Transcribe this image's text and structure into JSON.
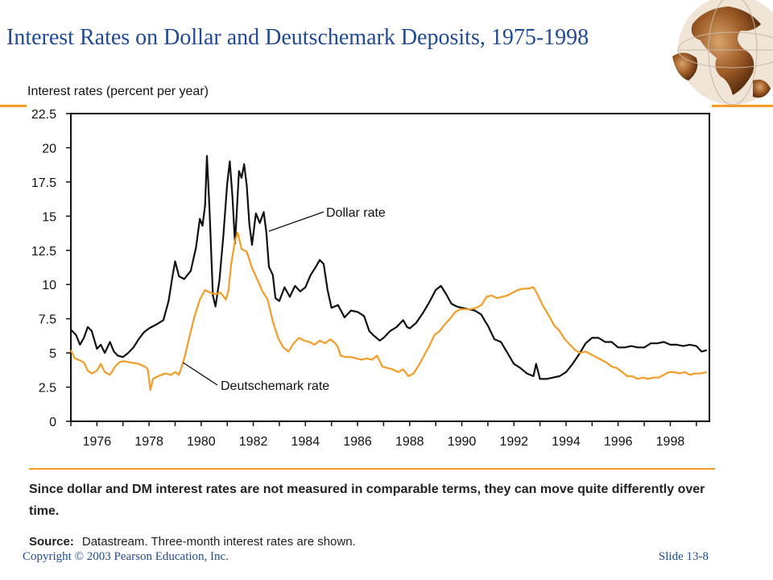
{
  "slide": {
    "title": "Interest Rates on Dollar and Deutschemark Deposits, 1975-1998",
    "caption": "Since dollar and DM interest rates are not measured in comparable terms, they can move quite differently over time.",
    "source_label": "Source:",
    "source_text": "Datastream. Three-month interest rates are shown.",
    "copyright": "Copyright © 2003 Pearson Education, Inc.",
    "slide_number": "Slide 13-8",
    "accent_color": "#f39c26",
    "title_color": "#1f4a96",
    "globe_icon": "globe-icon"
  },
  "chart_data": {
    "type": "line",
    "title": "",
    "xlabel": "",
    "ylabel": "Interest rates (percent per year)",
    "xlim": [
      1975.0,
      1999.5
    ],
    "ylim": [
      0,
      22.5
    ],
    "x_ticks": [
      1976,
      1978,
      1980,
      1982,
      1984,
      1986,
      1988,
      1990,
      1992,
      1994,
      1996,
      1998
    ],
    "y_ticks": [
      0,
      2.5,
      5,
      7.5,
      10,
      12.5,
      15,
      17.5,
      20,
      22.5
    ],
    "y_tick_labels": [
      "0",
      "2.5",
      "5",
      "7.5",
      "10",
      "12.5",
      "15",
      "17.5",
      "20",
      "22.5"
    ],
    "grid": false,
    "series": [
      {
        "name": "Dollar rate",
        "color": "#111111",
        "points": [
          [
            1975.0,
            6.7
          ],
          [
            1975.2,
            6.3
          ],
          [
            1975.35,
            5.6
          ],
          [
            1975.5,
            6.1
          ],
          [
            1975.65,
            6.9
          ],
          [
            1975.8,
            6.6
          ],
          [
            1976.0,
            5.3
          ],
          [
            1976.15,
            5.6
          ],
          [
            1976.3,
            5.0
          ],
          [
            1976.5,
            5.8
          ],
          [
            1976.65,
            5.1
          ],
          [
            1976.8,
            4.8
          ],
          [
            1977.0,
            4.7
          ],
          [
            1977.2,
            5.0
          ],
          [
            1977.4,
            5.4
          ],
          [
            1977.6,
            6.0
          ],
          [
            1977.8,
            6.5
          ],
          [
            1978.0,
            6.8
          ],
          [
            1978.3,
            7.1
          ],
          [
            1978.55,
            7.4
          ],
          [
            1978.75,
            8.8
          ],
          [
            1978.9,
            10.6
          ],
          [
            1979.0,
            11.7
          ],
          [
            1979.15,
            10.6
          ],
          [
            1979.35,
            10.4
          ],
          [
            1979.6,
            11.0
          ],
          [
            1979.8,
            12.7
          ],
          [
            1979.95,
            14.8
          ],
          [
            1980.05,
            14.3
          ],
          [
            1980.15,
            15.8
          ],
          [
            1980.22,
            19.4
          ],
          [
            1980.32,
            15.5
          ],
          [
            1980.45,
            9.2
          ],
          [
            1980.55,
            8.4
          ],
          [
            1980.7,
            10.3
          ],
          [
            1980.85,
            13.5
          ],
          [
            1981.0,
            17.4
          ],
          [
            1981.1,
            19.0
          ],
          [
            1981.2,
            16.4
          ],
          [
            1981.3,
            13.0
          ],
          [
            1981.45,
            18.3
          ],
          [
            1981.55,
            17.8
          ],
          [
            1981.65,
            18.8
          ],
          [
            1981.75,
            17.2
          ],
          [
            1981.85,
            14.4
          ],
          [
            1981.95,
            12.9
          ],
          [
            1982.1,
            15.2
          ],
          [
            1982.25,
            14.5
          ],
          [
            1982.4,
            15.3
          ],
          [
            1982.5,
            13.8
          ],
          [
            1982.6,
            11.3
          ],
          [
            1982.75,
            10.7
          ],
          [
            1982.85,
            9.0
          ],
          [
            1983.0,
            8.8
          ],
          [
            1983.2,
            9.8
          ],
          [
            1983.4,
            9.1
          ],
          [
            1983.6,
            9.9
          ],
          [
            1983.8,
            9.5
          ],
          [
            1984.0,
            9.8
          ],
          [
            1984.2,
            10.7
          ],
          [
            1984.4,
            11.3
          ],
          [
            1984.55,
            11.8
          ],
          [
            1984.7,
            11.5
          ],
          [
            1984.85,
            9.6
          ],
          [
            1985.0,
            8.3
          ],
          [
            1985.25,
            8.5
          ],
          [
            1985.5,
            7.6
          ],
          [
            1985.75,
            8.1
          ],
          [
            1986.0,
            8.0
          ],
          [
            1986.25,
            7.7
          ],
          [
            1986.45,
            6.6
          ],
          [
            1986.6,
            6.3
          ],
          [
            1986.85,
            5.9
          ],
          [
            1987.0,
            6.1
          ],
          [
            1987.25,
            6.6
          ],
          [
            1987.5,
            6.9
          ],
          [
            1987.75,
            7.4
          ],
          [
            1987.9,
            6.9
          ],
          [
            1988.0,
            6.8
          ],
          [
            1988.25,
            7.2
          ],
          [
            1988.5,
            7.9
          ],
          [
            1988.75,
            8.7
          ],
          [
            1989.0,
            9.6
          ],
          [
            1989.2,
            9.9
          ],
          [
            1989.4,
            9.3
          ],
          [
            1989.6,
            8.6
          ],
          [
            1989.8,
            8.4
          ],
          [
            1990.0,
            8.3
          ],
          [
            1990.25,
            8.2
          ],
          [
            1990.5,
            8.1
          ],
          [
            1990.75,
            7.8
          ],
          [
            1990.9,
            7.3
          ],
          [
            1991.0,
            7.0
          ],
          [
            1991.25,
            6.0
          ],
          [
            1991.5,
            5.8
          ],
          [
            1991.75,
            5.0
          ],
          [
            1992.0,
            4.2
          ],
          [
            1992.25,
            3.9
          ],
          [
            1992.5,
            3.5
          ],
          [
            1992.75,
            3.3
          ],
          [
            1992.85,
            4.2
          ],
          [
            1993.0,
            3.1
          ],
          [
            1993.25,
            3.1
          ],
          [
            1993.5,
            3.2
          ],
          [
            1993.75,
            3.3
          ],
          [
            1994.0,
            3.6
          ],
          [
            1994.25,
            4.2
          ],
          [
            1994.5,
            4.9
          ],
          [
            1994.75,
            5.7
          ],
          [
            1995.0,
            6.1
          ],
          [
            1995.25,
            6.1
          ],
          [
            1995.5,
            5.8
          ],
          [
            1995.75,
            5.8
          ],
          [
            1996.0,
            5.4
          ],
          [
            1996.25,
            5.4
          ],
          [
            1996.5,
            5.5
          ],
          [
            1996.75,
            5.4
          ],
          [
            1997.0,
            5.4
          ],
          [
            1997.25,
            5.7
          ],
          [
            1997.5,
            5.7
          ],
          [
            1997.75,
            5.8
          ],
          [
            1998.0,
            5.6
          ],
          [
            1998.25,
            5.6
          ],
          [
            1998.5,
            5.5
          ],
          [
            1998.75,
            5.6
          ],
          [
            1999.0,
            5.5
          ],
          [
            1999.2,
            5.1
          ],
          [
            1999.4,
            5.2
          ]
        ]
      },
      {
        "name": "Deutschemark rate",
        "color": "#f39c26",
        "points": [
          [
            1975.0,
            5.2
          ],
          [
            1975.15,
            4.6
          ],
          [
            1975.3,
            4.5
          ],
          [
            1975.5,
            4.3
          ],
          [
            1975.65,
            3.7
          ],
          [
            1975.8,
            3.5
          ],
          [
            1976.0,
            3.7
          ],
          [
            1976.15,
            4.2
          ],
          [
            1976.3,
            3.6
          ],
          [
            1976.5,
            3.4
          ],
          [
            1976.7,
            4.0
          ],
          [
            1976.85,
            4.3
          ],
          [
            1977.0,
            4.4
          ],
          [
            1977.3,
            4.3
          ],
          [
            1977.6,
            4.2
          ],
          [
            1977.85,
            4.0
          ],
          [
            1977.95,
            3.8
          ],
          [
            1978.05,
            2.3
          ],
          [
            1978.15,
            3.1
          ],
          [
            1978.35,
            3.3
          ],
          [
            1978.6,
            3.5
          ],
          [
            1978.85,
            3.4
          ],
          [
            1979.0,
            3.6
          ],
          [
            1979.15,
            3.4
          ],
          [
            1979.35,
            4.6
          ],
          [
            1979.55,
            6.2
          ],
          [
            1979.75,
            7.7
          ],
          [
            1979.95,
            8.9
          ],
          [
            1980.15,
            9.6
          ],
          [
            1980.35,
            9.4
          ],
          [
            1980.55,
            9.3
          ],
          [
            1980.75,
            9.4
          ],
          [
            1980.95,
            8.9
          ],
          [
            1981.05,
            9.6
          ],
          [
            1981.15,
            11.5
          ],
          [
            1981.3,
            13.2
          ],
          [
            1981.4,
            13.8
          ],
          [
            1981.55,
            12.6
          ],
          [
            1981.75,
            12.4
          ],
          [
            1981.95,
            11.2
          ],
          [
            1982.15,
            10.4
          ],
          [
            1982.35,
            9.5
          ],
          [
            1982.55,
            8.9
          ],
          [
            1982.75,
            7.3
          ],
          [
            1982.95,
            6.1
          ],
          [
            1983.15,
            5.4
          ],
          [
            1983.35,
            5.1
          ],
          [
            1983.55,
            5.7
          ],
          [
            1983.75,
            6.1
          ],
          [
            1983.95,
            5.9
          ],
          [
            1984.15,
            5.8
          ],
          [
            1984.35,
            5.6
          ],
          [
            1984.55,
            5.9
          ],
          [
            1984.75,
            5.7
          ],
          [
            1984.95,
            6.0
          ],
          [
            1985.15,
            5.7
          ],
          [
            1985.25,
            5.4
          ],
          [
            1985.35,
            4.8
          ],
          [
            1985.55,
            4.7
          ],
          [
            1985.75,
            4.7
          ],
          [
            1985.95,
            4.6
          ],
          [
            1986.15,
            4.5
          ],
          [
            1986.35,
            4.6
          ],
          [
            1986.55,
            4.5
          ],
          [
            1986.75,
            4.8
          ],
          [
            1986.95,
            4.0
          ],
          [
            1987.15,
            3.9
          ],
          [
            1987.35,
            3.8
          ],
          [
            1987.55,
            3.6
          ],
          [
            1987.75,
            3.8
          ],
          [
            1987.95,
            3.3
          ],
          [
            1988.15,
            3.5
          ],
          [
            1988.35,
            4.1
          ],
          [
            1988.55,
            4.8
          ],
          [
            1988.75,
            5.5
          ],
          [
            1988.95,
            6.3
          ],
          [
            1989.15,
            6.6
          ],
          [
            1989.35,
            7.1
          ],
          [
            1989.55,
            7.5
          ],
          [
            1989.75,
            8.0
          ],
          [
            1989.95,
            8.2
          ],
          [
            1990.15,
            8.2
          ],
          [
            1990.35,
            8.2
          ],
          [
            1990.55,
            8.3
          ],
          [
            1990.75,
            8.5
          ],
          [
            1990.95,
            9.1
          ],
          [
            1991.15,
            9.2
          ],
          [
            1991.35,
            9.0
          ],
          [
            1991.55,
            9.1
          ],
          [
            1991.75,
            9.2
          ],
          [
            1991.95,
            9.4
          ],
          [
            1992.15,
            9.6
          ],
          [
            1992.35,
            9.7
          ],
          [
            1992.55,
            9.7
          ],
          [
            1992.75,
            9.8
          ],
          [
            1992.9,
            9.3
          ],
          [
            1993.1,
            8.5
          ],
          [
            1993.35,
            7.7
          ],
          [
            1993.55,
            7.0
          ],
          [
            1993.75,
            6.6
          ],
          [
            1993.95,
            6.0
          ],
          [
            1994.15,
            5.6
          ],
          [
            1994.35,
            5.2
          ],
          [
            1994.55,
            5.0
          ],
          [
            1994.75,
            5.1
          ],
          [
            1994.95,
            4.9
          ],
          [
            1995.15,
            4.7
          ],
          [
            1995.35,
            4.5
          ],
          [
            1995.55,
            4.3
          ],
          [
            1995.75,
            4.0
          ],
          [
            1995.95,
            3.9
          ],
          [
            1996.15,
            3.6
          ],
          [
            1996.35,
            3.3
          ],
          [
            1996.55,
            3.3
          ],
          [
            1996.75,
            3.1
          ],
          [
            1996.95,
            3.2
          ],
          [
            1997.15,
            3.1
          ],
          [
            1997.35,
            3.2
          ],
          [
            1997.55,
            3.2
          ],
          [
            1997.75,
            3.4
          ],
          [
            1997.95,
            3.6
          ],
          [
            1998.15,
            3.6
          ],
          [
            1998.35,
            3.5
          ],
          [
            1998.55,
            3.6
          ],
          [
            1998.75,
            3.4
          ],
          [
            1998.95,
            3.5
          ],
          [
            1999.15,
            3.5
          ],
          [
            1999.4,
            3.6
          ]
        ]
      }
    ],
    "annotations": [
      {
        "text": "Dollar rate",
        "series": "Dollar rate",
        "arrow_target": [
          1982.6,
          13.9
        ]
      },
      {
        "text": "Deutschemark rate",
        "series": "Deutschemark rate",
        "arrow_target": [
          1979.3,
          4.3
        ]
      }
    ]
  }
}
